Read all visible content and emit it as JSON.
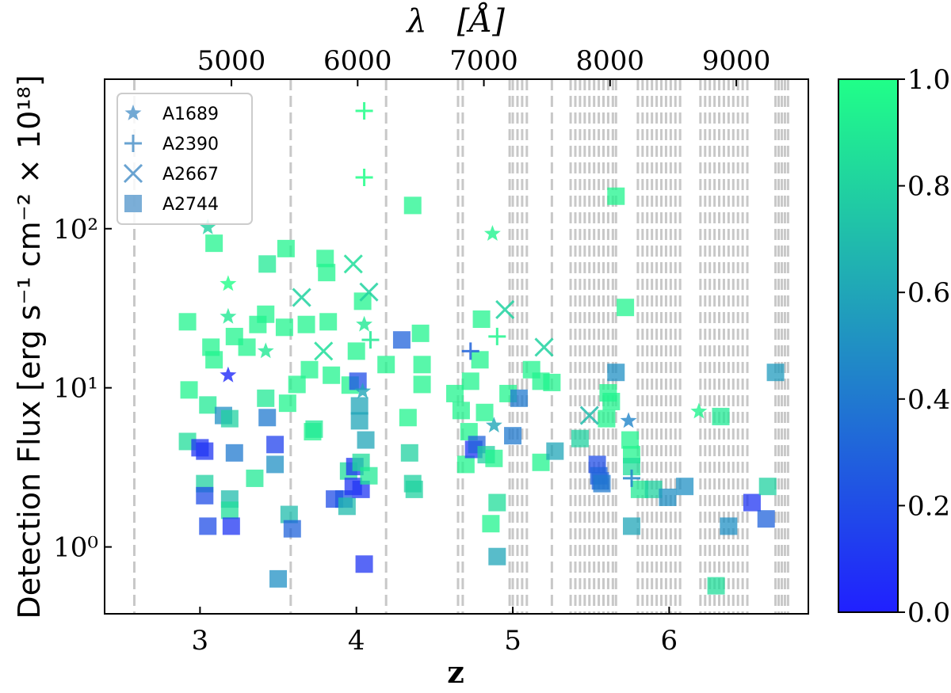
{
  "chart_data": {
    "type": "scatter",
    "x_label": "z",
    "x2_label": "λ   [Å]",
    "y_label": "Detection Flux [erg s⁻¹ cm⁻² × 10¹⁸]",
    "xlim": [
      2.39,
      6.89
    ],
    "xticks": [
      3,
      4,
      5,
      6
    ],
    "x2lim": [
      3995,
      9571
    ],
    "x2ticks": [
      5000,
      6000,
      7000,
      8000,
      9000
    ],
    "ylim": [
      0.38,
      870
    ],
    "log_y": true,
    "yticks": [
      {
        "value": 1,
        "label": "10⁰"
      },
      {
        "value": 10,
        "label": "10¹"
      },
      {
        "value": 100,
        "label": "10²"
      }
    ],
    "colormap": [
      "#2020ff",
      "#20ff88"
    ],
    "clim": [
      0,
      1
    ],
    "cticks": [
      {
        "value": 0,
        "label": "0.0"
      },
      0.2,
      0.4,
      0.6,
      0.8,
      {
        "value": 1,
        "label": "1.0"
      }
    ],
    "legend": "upper left",
    "sky_lines": [
      2.58,
      3.58,
      4.19,
      4.65,
      4.68,
      4.98,
      5.0,
      5.03,
      5.06,
      5.09,
      5.25,
      5.37,
      5.4,
      5.43,
      5.46,
      5.49,
      5.52,
      5.55,
      5.58,
      5.61,
      5.64,
      5.66,
      5.8,
      5.83,
      5.86,
      5.89,
      5.92,
      5.95,
      5.98,
      6.01,
      6.04,
      6.07,
      6.2,
      6.23,
      6.26,
      6.29,
      6.32,
      6.35,
      6.38,
      6.41,
      6.44,
      6.47,
      6.5,
      6.68,
      6.7,
      6.72,
      6.74,
      6.76
    ],
    "series": [
      {
        "name": "A1689",
        "marker": "star",
        "color": "#4f93c9",
        "x": [
          3.05,
          3.18,
          3.18,
          3.18,
          3.42,
          4.05,
          4.04,
          4.87,
          4.88,
          6.19,
          5.74
        ],
        "values": [
          102,
          45,
          28,
          12,
          17,
          25,
          9.5,
          93,
          5.8,
          7.1,
          6.2
        ],
        "c": [
          0.8,
          1,
          0.9,
          0.05,
          0.9,
          0.9,
          0.6,
          0.95,
          0.6,
          0.95,
          0.45
        ]
      },
      {
        "name": "A2390",
        "marker": "plus",
        "color": "#4f93c9",
        "x": [
          4.05,
          4.05,
          4.9,
          4.73,
          5.76,
          4.09
        ],
        "values": [
          550,
          210,
          21,
          17,
          2.7,
          20
        ],
        "c": [
          1,
          1,
          0.95,
          0.3,
          0.45,
          0.9
        ]
      },
      {
        "name": "A2667",
        "marker": "x",
        "color": "#4f93c9",
        "x": [
          3.98,
          4.08,
          3.65,
          3.79,
          4.95,
          5.2,
          5.49
        ],
        "values": [
          60,
          40,
          37,
          17,
          31,
          18,
          6.7
        ],
        "c": [
          0.85,
          0.8,
          0.8,
          0.85,
          0.8,
          0.8,
          0.7
        ]
      },
      {
        "name": "A2744",
        "marker": "square",
        "color": "#4f93c9",
        "x": [
          2.92,
          2.93,
          2.92,
          3.0,
          3.03,
          3.03,
          3.03,
          3.05,
          3.05,
          3.07,
          3.09,
          3.09,
          3.15,
          3.19,
          3.19,
          3.19,
          3.2,
          3.22,
          3.22,
          3.3,
          3.35,
          3.37,
          3.42,
          3.42,
          3.43,
          3.43,
          3.48,
          3.48,
          3.5,
          3.54,
          3.55,
          3.56,
          3.57,
          3.59,
          3.62,
          3.68,
          3.7,
          3.72,
          3.73,
          3.8,
          3.81,
          3.82,
          3.84,
          3.86,
          3.92,
          3.94,
          3.95,
          3.96,
          3.98,
          3.99,
          4.0,
          4.01,
          4.02,
          4.02,
          4.03,
          4.03,
          4.04,
          4.05,
          4.06,
          4.08,
          4.19,
          4.29,
          4.33,
          4.34,
          4.36,
          4.37,
          4.36,
          4.41,
          4.42,
          4.42,
          4.63,
          4.67,
          4.7,
          4.72,
          4.73,
          4.75,
          4.77,
          4.79,
          4.8,
          4.82,
          4.83,
          4.88,
          4.86,
          4.9,
          4.9,
          4.97,
          5.0,
          5.04,
          5.12,
          5.18,
          5.18,
          5.25,
          5.27,
          5.43,
          5.54,
          5.55,
          5.56,
          5.57,
          5.6,
          5.61,
          5.63,
          5.66,
          5.66,
          5.72,
          5.75,
          5.76,
          5.76,
          5.76,
          5.81,
          5.9,
          5.99,
          6.1,
          6.3,
          6.33,
          6.38,
          6.53,
          6.62,
          6.68,
          6.63
        ],
        "values": [
          26,
          9.7,
          4.6,
          4.2,
          4.0,
          2.5,
          2.1,
          1.35,
          7.8,
          18,
          15,
          81,
          6.7,
          6.4,
          2.0,
          1.7,
          1.35,
          3.9,
          21,
          18,
          2.7,
          25,
          29,
          8.6,
          60,
          6.5,
          4.4,
          3.3,
          0.63,
          24,
          75,
          8.0,
          1.6,
          1.3,
          10.5,
          25,
          13,
          5.3,
          5.5,
          65,
          53,
          26,
          12,
          2.0,
          2.0,
          1.8,
          3.0,
          10.4,
          2.4,
          3.2,
          17,
          11,
          7.7,
          6.2,
          3.4,
          2.3,
          35,
          0.78,
          4.7,
          2.8,
          14,
          20,
          6.5,
          3.9,
          2.5,
          2.3,
          140,
          22,
          14,
          10.5,
          9.2,
          7.2,
          3.3,
          5.3,
          11,
          4.1,
          4.4,
          15,
          27,
          7.0,
          3.8,
          3.6,
          1.4,
          1.9,
          0.87,
          9.2,
          5.0,
          8.6,
          13,
          3.4,
          11,
          10.8,
          4.0,
          4.8,
          3.3,
          2.8,
          2.6,
          2.5,
          6.4,
          9.3,
          8.2,
          12.5,
          160,
          32,
          4.7,
          3.8,
          3.2,
          1.35,
          2.3,
          2.3,
          2.05,
          2.4,
          0.57,
          6.6,
          1.35,
          1.9,
          1.5,
          12.5,
          2.4
        ],
        "c": [
          0.95,
          0.95,
          0.85,
          0.1,
          0.1,
          0.8,
          0.2,
          0.2,
          0.9,
          0.95,
          0.95,
          0.95,
          0.5,
          0.8,
          0.7,
          0.85,
          0.1,
          0.4,
          0.95,
          0.95,
          0.9,
          0.95,
          0.95,
          0.9,
          0.9,
          0.4,
          0.15,
          0.5,
          0.5,
          0.95,
          0.95,
          0.95,
          0.7,
          0.3,
          0.95,
          0.95,
          0.95,
          0.95,
          0.9,
          0.95,
          0.95,
          0.95,
          0.95,
          0.2,
          0.25,
          0.7,
          0.85,
          0.95,
          0.1,
          0.1,
          0.95,
          0.2,
          0.6,
          0.6,
          0.85,
          0.1,
          0.95,
          0.1,
          0.6,
          0.9,
          0.95,
          0.3,
          0.95,
          0.8,
          0.8,
          0.8,
          0.95,
          0.95,
          0.95,
          0.95,
          0.95,
          0.95,
          0.95,
          0.95,
          0.95,
          0.1,
          0.3,
          0.95,
          0.95,
          0.95,
          0.8,
          0.95,
          0.95,
          0.85,
          0.6,
          0.95,
          0.4,
          0.4,
          0.95,
          0.95,
          0.95,
          0.95,
          0.6,
          0.8,
          0.2,
          0.3,
          0.3,
          0.4,
          0.95,
          0.95,
          0.95,
          0.5,
          0.95,
          0.95,
          0.95,
          0.95,
          0.85,
          0.6,
          0.9,
          0.8,
          0.5,
          0.5,
          0.85,
          0.9,
          0.5,
          0.1,
          0.3,
          0.55,
          0.8
        ]
      }
    ]
  }
}
